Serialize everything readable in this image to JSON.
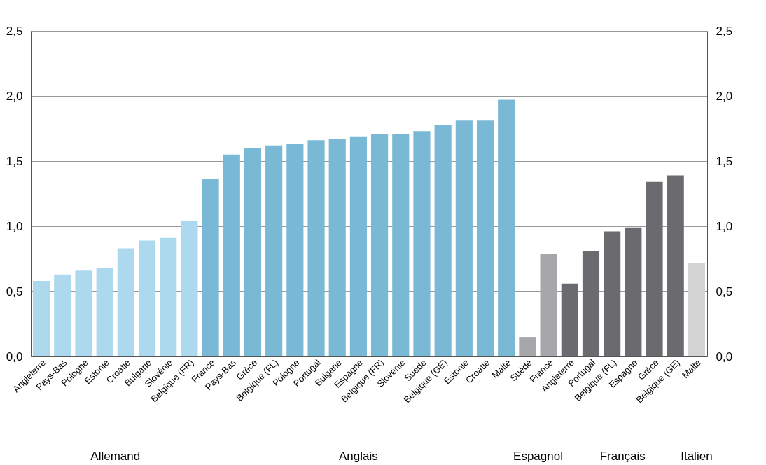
{
  "chart_data": {
    "type": "bar",
    "categories": [
      "Angleterre",
      "Pays-Bas",
      "Pologne",
      "Estonie",
      "Croatie",
      "Bulgarie",
      "Slovénie",
      "Belgique (FR)",
      "France",
      "Pays-Bas",
      "Grèce",
      "Belgique (FL)",
      "Pologne",
      "Portugal",
      "Bulgarie",
      "Espagne",
      "Belgique (FR)",
      "Slovénie",
      "Suède",
      "Belgique (GE)",
      "Estonie",
      "Croatie",
      "Malte",
      "Suède",
      "France",
      "Angleterre",
      "Portugal",
      "Belgique (FL)",
      "Espagne",
      "Grèce",
      "Belgique (GE)",
      "Malte"
    ],
    "series": [
      {
        "color": "#acd9ed",
        "values": [
          0.58,
          0.63,
          0.66,
          0.68,
          0.83,
          0.89,
          0.91,
          1.04,
          null,
          null,
          null,
          null,
          null,
          null,
          null,
          null,
          null,
          null,
          null,
          null,
          null,
          null,
          null,
          null,
          null,
          null,
          null,
          null,
          null,
          null,
          null,
          null
        ]
      },
      {
        "color": "#79b9d6",
        "values": [
          null,
          null,
          null,
          null,
          null,
          null,
          null,
          null,
          1.36,
          1.55,
          1.6,
          1.62,
          1.63,
          1.66,
          1.67,
          1.69,
          1.71,
          1.71,
          1.73,
          1.78,
          1.81,
          1.81,
          1.97,
          null,
          null,
          null,
          null,
          null,
          null,
          null,
          null,
          null
        ]
      },
      {
        "color": "#a7a7ab",
        "values": [
          null,
          null,
          null,
          null,
          null,
          null,
          null,
          null,
          null,
          null,
          null,
          null,
          null,
          null,
          null,
          null,
          null,
          null,
          null,
          null,
          null,
          null,
          null,
          0.15,
          0.79,
          null,
          null,
          null,
          null,
          null,
          null,
          null
        ]
      },
      {
        "color": "#6b6b6f",
        "values": [
          null,
          null,
          null,
          null,
          null,
          null,
          null,
          null,
          null,
          null,
          null,
          null,
          null,
          null,
          null,
          null,
          null,
          null,
          null,
          null,
          null,
          null,
          null,
          null,
          null,
          0.56,
          0.81,
          0.96,
          0.99,
          1.34,
          1.39,
          null
        ]
      },
      {
        "color": "#d4d4d4",
        "values": [
          null,
          null,
          null,
          null,
          null,
          null,
          null,
          null,
          null,
          null,
          null,
          null,
          null,
          null,
          null,
          null,
          null,
          null,
          null,
          null,
          null,
          null,
          null,
          null,
          null,
          null,
          null,
          null,
          null,
          null,
          null,
          0.72
        ]
      }
    ],
    "ylim": [
      0,
      2.5
    ],
    "yticks": [
      {
        "value": 0,
        "label": "0,0"
      },
      {
        "value": 0.5,
        "label": "0,5"
      },
      {
        "value": 1,
        "label": "1,0"
      },
      {
        "value": 1.5,
        "label": "1,5"
      },
      {
        "value": 2,
        "label": "2,0"
      },
      {
        "value": 2.5,
        "label": "2,5"
      }
    ],
    "y2lim": [
      0,
      2.5
    ],
    "y2ticks": [
      {
        "value": 0,
        "label": "0,0"
      },
      {
        "value": 0.5,
        "label": "0,5"
      },
      {
        "value": 1,
        "label": "1,0"
      },
      {
        "value": 1.5,
        "label": "1,5"
      },
      {
        "value": 2,
        "label": "2,0"
      },
      {
        "value": 2.5,
        "label": "2,5"
      }
    ],
    "annotations": [
      "Allemand",
      "Anglais",
      "Espagnol",
      "Français",
      "Italien"
    ],
    "grid": "y",
    "legend": false
  }
}
